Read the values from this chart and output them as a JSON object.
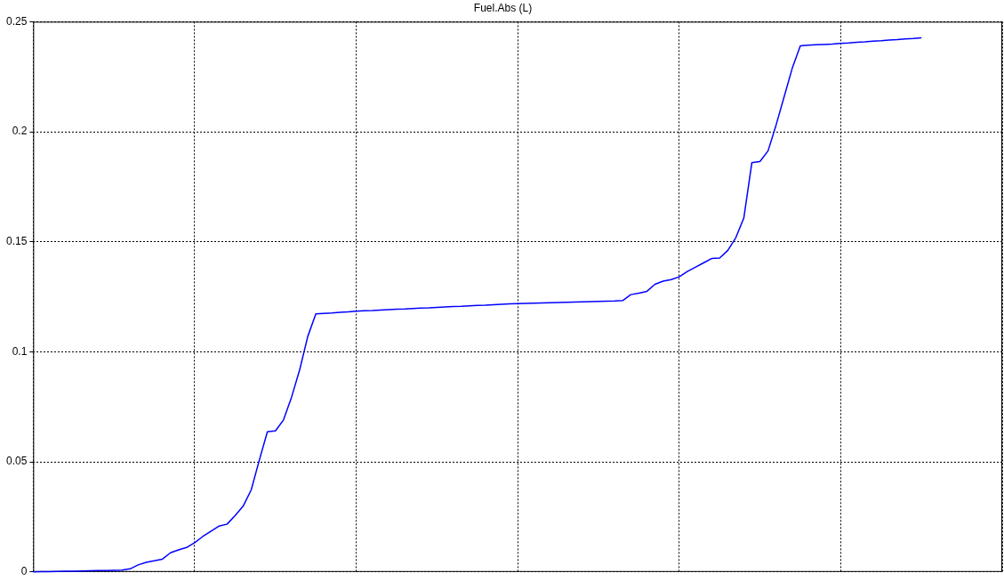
{
  "chart_data": {
    "type": "line",
    "title": "Fuel.Abs (L)",
    "categories": [
      null,
      null,
      null,
      null,
      null,
      null,
      null,
      null,
      null,
      null,
      null,
      null,
      null,
      null,
      null,
      null,
      null,
      null,
      null,
      null,
      null,
      null,
      null,
      null,
      null,
      null,
      null,
      null,
      null,
      null,
      null,
      null,
      null,
      null,
      null,
      null,
      null,
      null,
      null,
      null,
      null,
      null,
      null,
      null,
      null,
      null,
      null,
      null,
      null,
      null,
      null,
      null,
      null,
      null,
      null,
      null,
      null,
      null,
      null,
      null,
      null,
      null,
      null,
      null,
      null,
      null,
      null,
      null,
      null,
      null,
      null,
      null,
      null,
      null,
      null,
      null,
      null,
      null,
      null,
      null,
      null,
      null,
      null,
      null,
      null,
      null,
      null,
      null,
      null,
      null,
      null,
      null,
      null,
      null,
      null,
      null,
      null,
      null,
      null,
      null,
      null,
      null,
      null,
      null,
      null,
      null,
      null,
      null,
      null,
      null,
      null,
      null,
      null,
      null,
      null,
      null,
      null,
      null,
      null,
      null,
      null
    ],
    "series": [
      {
        "color": "#0000ff",
        "values": [
          0,
          0.0001,
          0.0001,
          0.0002,
          0.0003,
          0.0003,
          0.0004,
          0.0005,
          0.0006,
          0.0006,
          0.0007,
          0.0008,
          0.0014,
          0.0032,
          0.0044,
          0.0051,
          0.0058,
          0.0087,
          0.01,
          0.0111,
          0.0133,
          0.0161,
          0.0185,
          0.0208,
          0.0217,
          0.0256,
          0.0299,
          0.0373,
          0.0508,
          0.0637,
          0.0641,
          0.0691,
          0.0795,
          0.0919,
          0.107,
          0.1173,
          0.1175,
          0.1177,
          0.118,
          0.1182,
          0.1185,
          0.1187,
          0.1188,
          0.119,
          0.1192,
          0.1194,
          0.1195,
          0.1197,
          0.1199,
          0.12,
          0.1202,
          0.1204,
          0.1206,
          0.1207,
          0.1209,
          0.1211,
          0.1212,
          0.1214,
          0.1216,
          0.1218,
          0.1219,
          0.122,
          0.1221,
          0.1222,
          0.1223,
          0.1224,
          0.1225,
          0.1226,
          0.1227,
          0.1228,
          0.1229,
          0.123,
          0.1231,
          0.1233,
          0.126,
          0.1267,
          0.1275,
          0.1307,
          0.1321,
          0.1328,
          0.1341,
          0.1365,
          0.1384,
          0.1404,
          0.1424,
          0.1426,
          0.146,
          0.1518,
          0.1608,
          0.186,
          0.1865,
          0.1913,
          0.2031,
          0.216,
          0.2289,
          0.239,
          0.2393,
          0.2395,
          0.2397,
          0.2399,
          0.2402,
          0.2404,
          0.2407,
          0.2409,
          0.2412,
          0.2414,
          0.2417,
          0.2419,
          0.2422,
          0.2424,
          0.2427,
          null,
          null,
          null,
          null,
          null,
          null,
          null,
          null,
          null,
          null
        ]
      }
    ],
    "ylim": [
      0,
      0.25
    ],
    "yticks": [
      0,
      0.05,
      0.1,
      0.15,
      0.2,
      0.25
    ],
    "grid": true,
    "legend": false,
    "marker": "none",
    "line_style": "solid"
  }
}
